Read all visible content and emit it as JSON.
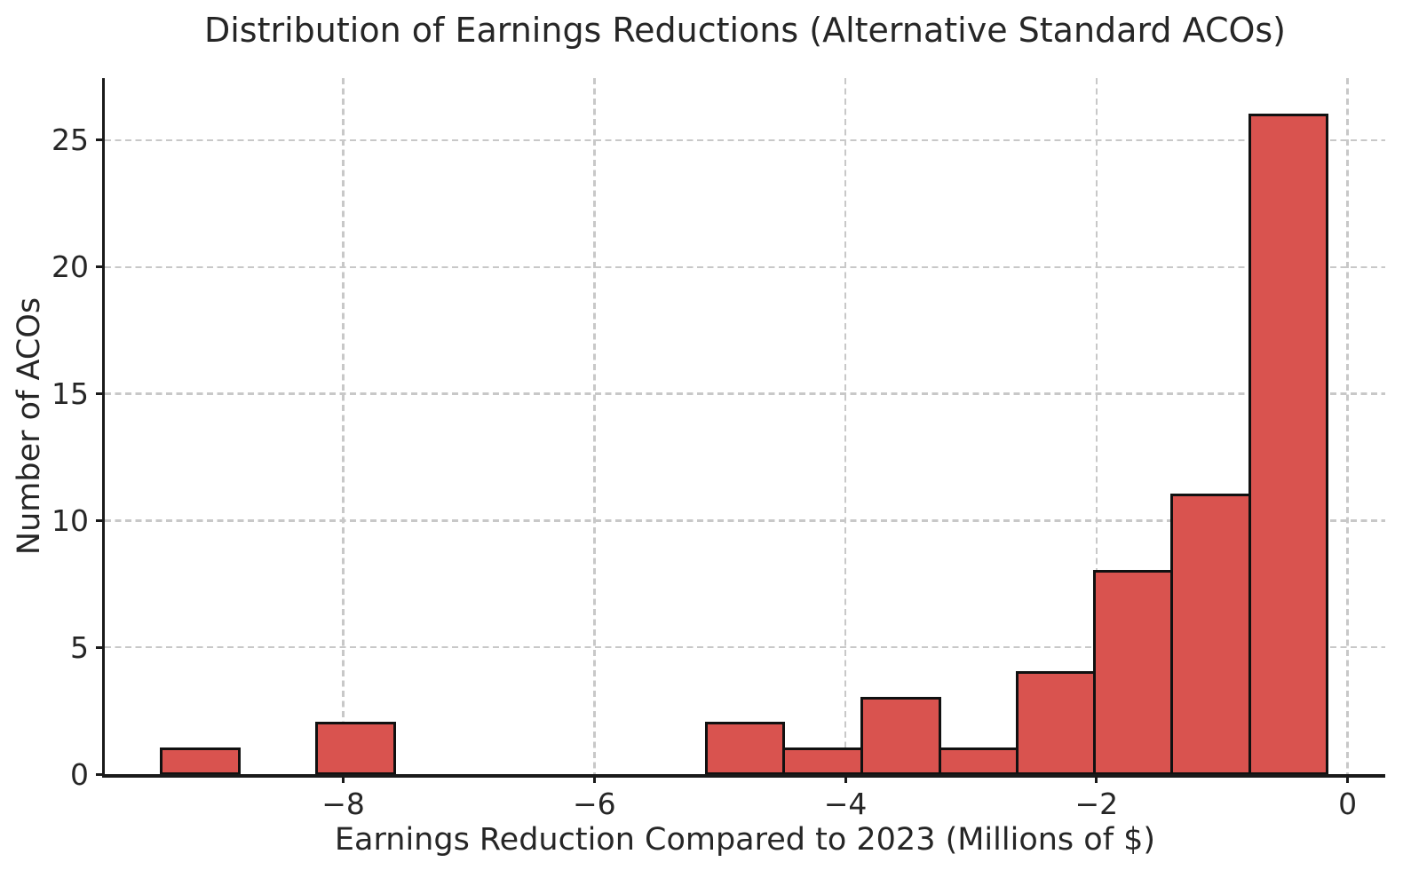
{
  "chart_data": {
    "type": "bar",
    "subtype": "histogram",
    "title": "Distribution of Earnings Reductions (Alternative Standard ACOs)",
    "xlabel": "Earnings Reduction Compared to 2023 (Millions of $)",
    "ylabel": "Number of ACOs",
    "bin_edges": [
      -9.45,
      -8.83,
      -8.21,
      -7.59,
      -6.97,
      -6.35,
      -5.73,
      -5.11,
      -4.49,
      -3.87,
      -3.25,
      -2.63,
      -2.02,
      -1.4,
      -0.78,
      -0.16
    ],
    "counts": [
      1,
      0,
      2,
      0,
      0,
      0,
      0,
      2,
      1,
      3,
      1,
      4,
      8,
      11,
      26
    ],
    "total_count": 59,
    "xlim": [
      -9.9,
      0.3
    ],
    "ylim": [
      0,
      27.45
    ],
    "x_ticks": [
      {
        "value": -8,
        "label": "−8"
      },
      {
        "value": -6,
        "label": "−6"
      },
      {
        "value": -4,
        "label": "−4"
      },
      {
        "value": -2,
        "label": "−2"
      },
      {
        "value": 0,
        "label": "0"
      }
    ],
    "y_ticks": [
      {
        "value": 0,
        "label": "0"
      },
      {
        "value": 5,
        "label": "5"
      },
      {
        "value": 10,
        "label": "10"
      },
      {
        "value": 15,
        "label": "15"
      },
      {
        "value": 20,
        "label": "20"
      },
      {
        "value": 25,
        "label": "25"
      }
    ],
    "grid": "dashed",
    "legend": "none",
    "colors": {
      "bar_fill": "#d9534f",
      "bar_edge": "#111111",
      "grid_color": "#c8c8c8",
      "axis_color": "#1a1a1a",
      "text_color": "#262626",
      "background": "#ffffff"
    }
  }
}
